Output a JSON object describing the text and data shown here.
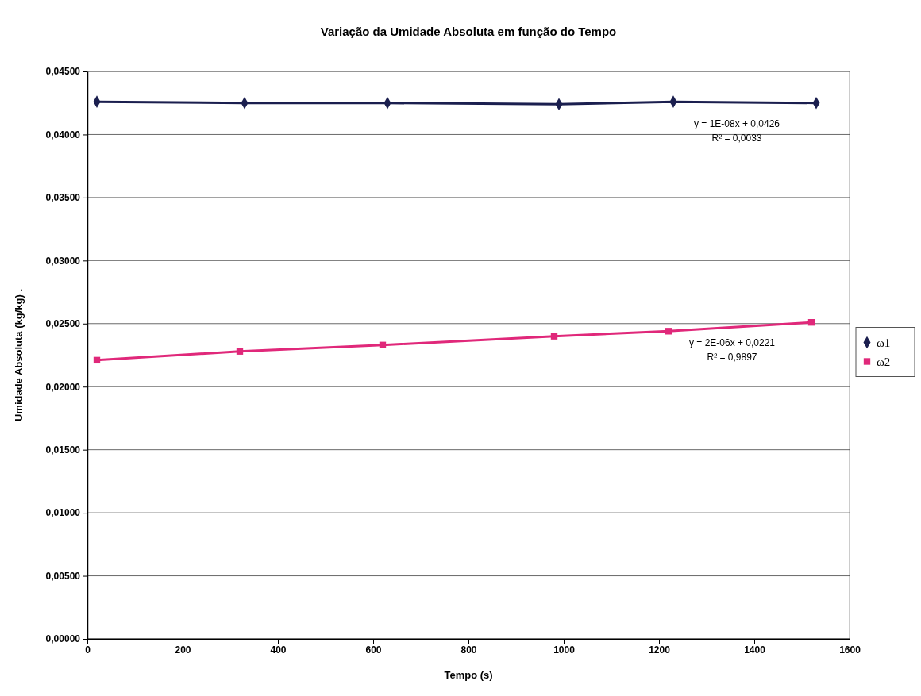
{
  "chart_data": {
    "type": "line",
    "title": "Variação da Umidade Absoluta em função do Tempo",
    "xlabel": "Tempo (s)",
    "ylabel": "Umidade Absoluta (kg/kg) .",
    "series": [
      {
        "name": "ω1",
        "color": "#1b1f4f",
        "marker": "diamond",
        "x": [
          20,
          330,
          630,
          990,
          1230,
          1530
        ],
        "values": [
          0.0426,
          0.0425,
          0.0425,
          0.0424,
          0.0426,
          0.0425
        ]
      },
      {
        "name": "ω2",
        "color": "#e0287a",
        "marker": "square",
        "x": [
          20,
          320,
          620,
          980,
          1220,
          1520
        ],
        "values": [
          0.0221,
          0.0228,
          0.0233,
          0.024,
          0.0244,
          0.0251
        ]
      }
    ],
    "annotations": [
      "y = 1E-08x + 0,0426",
      "R² = 0,0033",
      "y = 2E-06x + 0,0221",
      "R² = 0,9897"
    ],
    "xlim": [
      0,
      1600
    ],
    "xticks": [
      0,
      200,
      400,
      600,
      800,
      1000,
      1200,
      1400,
      1600
    ],
    "ylim": [
      0,
      0.045
    ],
    "yticks": [
      {
        "value": 0,
        "label": "0,00000"
      },
      {
        "value": 0.005,
        "label": "0,00500"
      },
      {
        "value": 0.01,
        "label": "0,01000"
      },
      {
        "value": 0.015,
        "label": "0,01500"
      },
      {
        "value": 0.02,
        "label": "0,02000"
      },
      {
        "value": 0.025,
        "label": "0,02500"
      },
      {
        "value": 0.03,
        "label": "0,03000"
      },
      {
        "value": 0.035,
        "label": "0,03500"
      },
      {
        "value": 0.04,
        "label": "0,04000"
      },
      {
        "value": 0.045,
        "label": "0,04500"
      }
    ],
    "grid": "y",
    "legend": "right",
    "line_style": "solid"
  }
}
